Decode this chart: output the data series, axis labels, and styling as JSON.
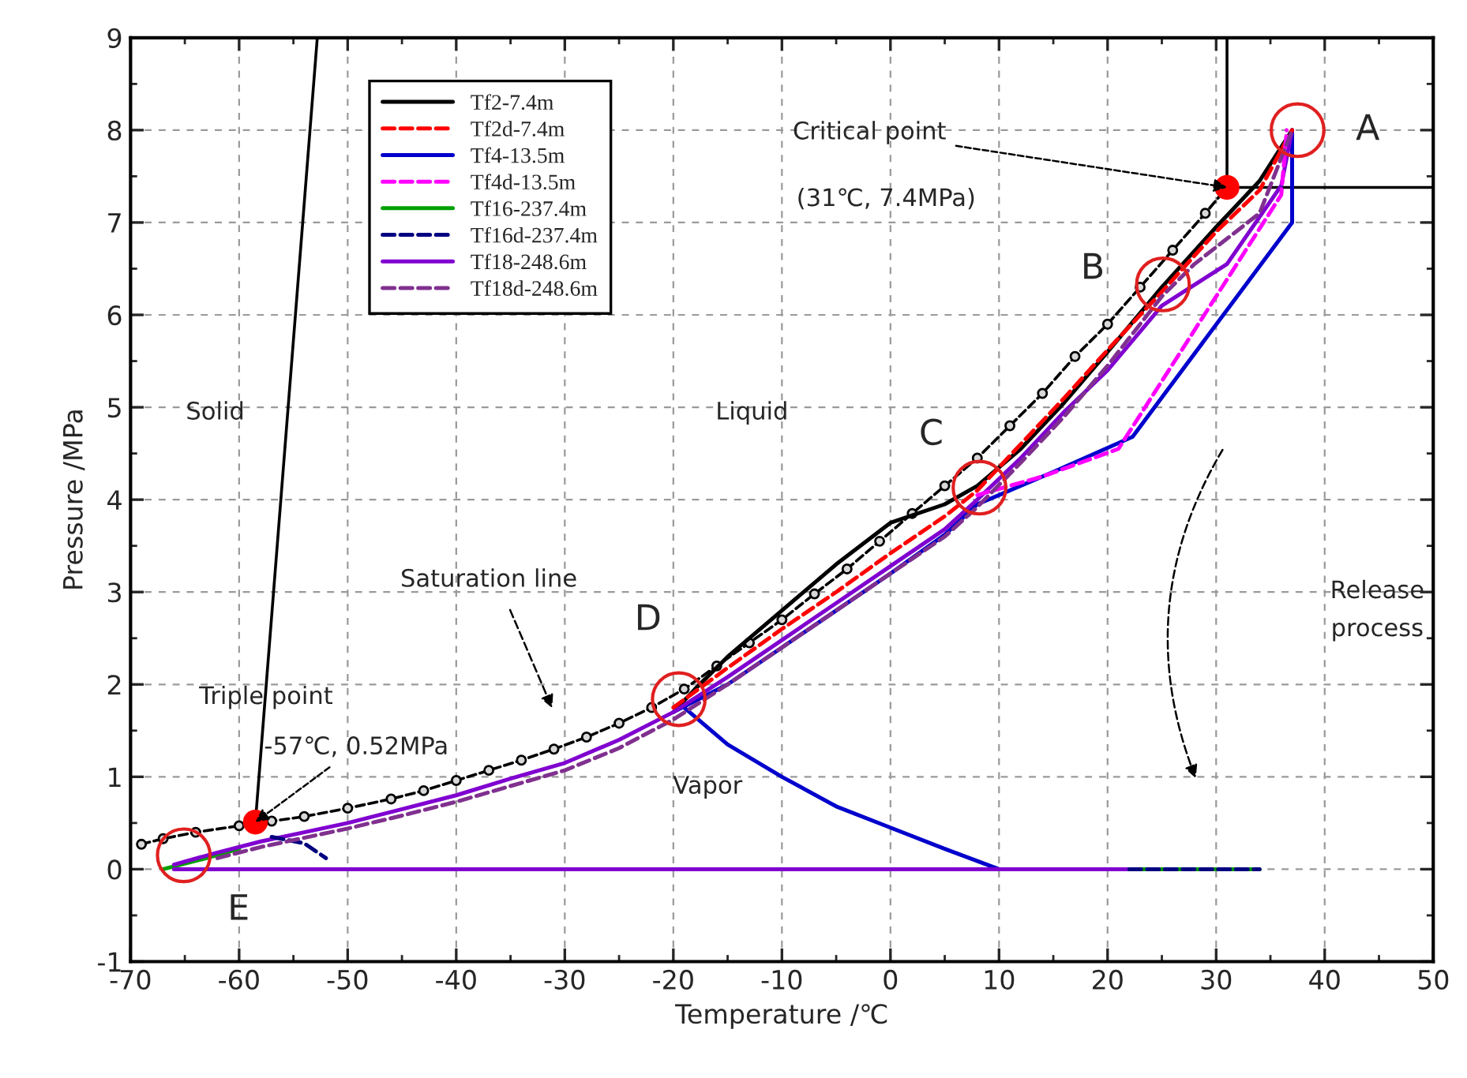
{
  "chart_data": {
    "type": "line",
    "xlabel": "Temperature /℃",
    "ylabel": "Pressure /MPa",
    "xlim": [
      -70,
      50
    ],
    "xticks": [
      -70,
      -60,
      -50,
      -40,
      -30,
      -20,
      -10,
      0,
      10,
      20,
      30,
      40,
      50
    ],
    "ylim": [
      -1,
      9
    ],
    "yticks": [
      -1,
      0,
      1,
      2,
      3,
      4,
      5,
      6,
      7,
      8,
      9
    ],
    "grid": true,
    "legend": "top left",
    "series": [
      {
        "name": "Tf2-7.4m",
        "color": "#000000",
        "line_style": "solid",
        "x": [
          -20,
          -18,
          -15,
          -10,
          -5,
          0,
          5,
          8,
          12,
          16,
          20,
          25,
          30,
          34,
          37
        ],
        "values": [
          1.7,
          1.95,
          2.3,
          2.8,
          3.3,
          3.75,
          3.95,
          4.15,
          4.55,
          5.05,
          5.6,
          6.3,
          6.95,
          7.45,
          8.0
        ]
      },
      {
        "name": "Tf2d-7.4m",
        "color": "#ff0000",
        "line_style": "dashed",
        "x": [
          -20,
          -15,
          -10,
          -5,
          0,
          5,
          8,
          12,
          16,
          20,
          25,
          30,
          34,
          37
        ],
        "values": [
          1.75,
          2.18,
          2.6,
          3.0,
          3.42,
          3.82,
          4.1,
          4.6,
          5.1,
          5.62,
          6.25,
          6.9,
          7.35,
          8.0
        ]
      },
      {
        "name": "Tf4-13.5m",
        "color": "#0000cc",
        "line_style": "solid",
        "x": [
          -20,
          -15,
          -10,
          -5,
          0,
          5,
          8,
          15,
          22.3,
          37,
          37,
          null,
          -19,
          -15,
          -10,
          -5,
          0,
          5,
          10
        ],
        "values": [
          1.7,
          2.0,
          2.4,
          2.8,
          3.2,
          3.62,
          3.95,
          4.3,
          4.68,
          7.0,
          8.0,
          null,
          1.75,
          1.35,
          1.0,
          0.68,
          0.45,
          0.22,
          0
        ]
      },
      {
        "name": "Tf4d-13.5m",
        "color": "#ff00ff",
        "line_style": "dashed",
        "x": [
          8,
          14,
          21,
          36,
          36.5
        ],
        "values": [
          4.05,
          4.25,
          4.55,
          7.3,
          8.0
        ]
      },
      {
        "name": "Tf16-237.4m",
        "color": "#00a000",
        "line_style": "solid",
        "x": [
          -67,
          -63,
          -60,
          null,
          22,
          34
        ],
        "values": [
          0.0,
          0.12,
          0.22,
          null,
          0,
          0
        ]
      },
      {
        "name": "Tf16d-237.4m",
        "color": "#000080",
        "line_style": "dashed",
        "x": [
          -57,
          -54,
          -52,
          null,
          22,
          34
        ],
        "values": [
          0.35,
          0.28,
          0.12,
          null,
          0,
          0
        ]
      },
      {
        "name": "Tf18-248.6m",
        "color": "#8000d0",
        "line_style": "solid",
        "x": [
          -66,
          22,
          null,
          -66,
          -62,
          -58,
          -54,
          -50,
          -45,
          -40,
          -35,
          -30,
          -25,
          -20,
          -15,
          -10,
          -5,
          0,
          5,
          8,
          12,
          16,
          20,
          25,
          31,
          36,
          37
        ],
        "values": [
          0,
          0,
          null,
          0.05,
          0.18,
          0.3,
          0.4,
          0.5,
          0.65,
          0.8,
          0.98,
          1.15,
          1.4,
          1.7,
          2.08,
          2.48,
          2.88,
          3.28,
          3.68,
          4.0,
          4.45,
          4.95,
          5.4,
          6.1,
          6.55,
          7.4,
          8.0
        ]
      },
      {
        "name": "Tf18d-248.6m",
        "color": "#80308f",
        "line_style": "dashed",
        "x": [
          -62,
          -58,
          -54,
          -50,
          -45,
          -40,
          -35,
          -30,
          -25,
          -20,
          -15,
          -10,
          -5,
          0,
          5,
          8,
          12,
          16,
          20,
          25,
          28,
          34,
          37
        ],
        "values": [
          0.12,
          0.24,
          0.34,
          0.44,
          0.58,
          0.73,
          0.9,
          1.07,
          1.31,
          1.62,
          2.0,
          2.4,
          2.8,
          3.2,
          3.6,
          3.92,
          4.4,
          4.9,
          5.45,
          6.2,
          6.55,
          7.1,
          8.0
        ]
      },
      {
        "color": "#000000",
        "line_style": "dashed",
        "marker": "circle",
        "x": [
          -69,
          -67,
          -64,
          -60,
          -57,
          -54,
          -50,
          -46,
          -43,
          -40,
          -37,
          -34,
          -31,
          -28,
          -25,
          -22,
          -19,
          -16,
          -13,
          -10,
          -7,
          -4,
          -1,
          2,
          5,
          8,
          11,
          14,
          17,
          20,
          23,
          26,
          29,
          31
        ],
        "values": [
          0.27,
          0.33,
          0.4,
          0.47,
          0.52,
          0.57,
          0.66,
          0.76,
          0.85,
          0.96,
          1.07,
          1.18,
          1.3,
          1.43,
          1.58,
          1.75,
          1.95,
          2.2,
          2.45,
          2.7,
          2.98,
          3.25,
          3.55,
          3.85,
          4.15,
          4.45,
          4.8,
          5.15,
          5.55,
          5.9,
          6.3,
          6.7,
          7.1,
          7.38
        ]
      },
      {
        "color": "#000000",
        "line_style": "solid",
        "x": [
          -58.5,
          -52.8
        ],
        "values": [
          0.51,
          9
        ]
      },
      {
        "color": "#000000",
        "line_style": "solid",
        "x": [
          31,
          31,
          null,
          31,
          50
        ],
        "values": [
          7.38,
          9,
          null,
          7.38,
          7.38
        ]
      },
      {
        "type": "scatter",
        "color": "#ff0000",
        "x": [
          -58.5,
          31
        ],
        "values": [
          0.51,
          7.38
        ]
      }
    ],
    "annotations": [
      "Solid",
      "Liquid",
      "Vapor",
      "Saturation line",
      "Triple point",
      {
        "text": "-57℃, 0.52MPa",
        "x": -58.5,
        "y": 0.51
      },
      {
        "text": "Critical point",
        "x": 31,
        "y": 7.38
      },
      "(31℃, 7.4MPa)",
      "Release\nprocess",
      {
        "text": "A",
        "x": 37.5,
        "y": 8.0
      },
      {
        "text": "B",
        "x": 25.1,
        "y": 6.33
      },
      {
        "text": "C",
        "x": 8.2,
        "y": 4.13
      },
      {
        "text": "D",
        "x": -19.5,
        "y": 1.84
      },
      {
        "text": "E",
        "x": -65.1,
        "y": 0.15
      }
    ]
  }
}
